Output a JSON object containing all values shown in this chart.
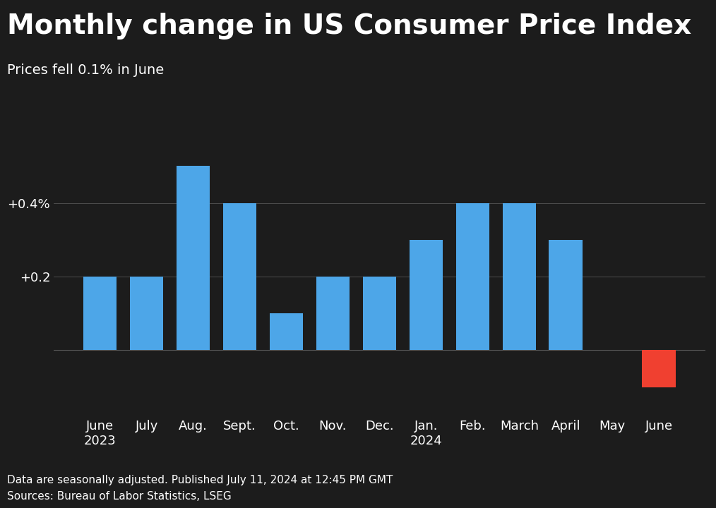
{
  "title": "Monthly change in US Consumer Price Index",
  "subtitle": "Prices fell 0.1% in June",
  "footnote1": "Data are seasonally adjusted. Published July 11, 2024 at 12:45 PM GMT",
  "footnote2": "Sources: Bureau of Labor Statistics, LSEG",
  "categories": [
    "June\n2023",
    "July",
    "Aug.",
    "Sept.",
    "Oct.",
    "Nov.",
    "Dec.",
    "Jan.\n2024",
    "Feb.",
    "March",
    "April",
    "May",
    "June"
  ],
  "values": [
    0.2,
    0.2,
    0.5,
    0.4,
    0.1,
    0.2,
    0.2,
    0.3,
    0.4,
    0.4,
    0.3,
    0.0,
    -0.1
  ],
  "bar_colors": [
    "#4da6e8",
    "#4da6e8",
    "#4da6e8",
    "#4da6e8",
    "#4da6e8",
    "#4da6e8",
    "#4da6e8",
    "#4da6e8",
    "#4da6e8",
    "#4da6e8",
    "#4da6e8",
    "#4da6e8",
    "#f04030"
  ],
  "background_color": "#1c1c1c",
  "text_color": "#ffffff",
  "grid_color": "#555555",
  "ylim": [
    -0.18,
    0.62
  ],
  "yticks": [
    0.0,
    0.2,
    0.4
  ],
  "title_fontsize": 28,
  "subtitle_fontsize": 14,
  "footnote_fontsize": 11,
  "tick_fontsize": 13,
  "bar_width": 0.72
}
